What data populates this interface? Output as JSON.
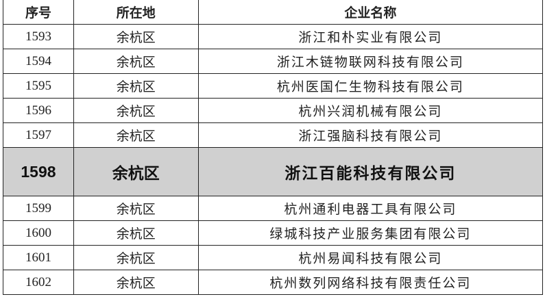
{
  "headers": [
    "序号",
    "所在地",
    "企业名称"
  ],
  "highlight_color": "#d0d0d0",
  "rows": [
    {
      "no": "1593",
      "location": "余杭区",
      "name": "浙江和朴实业有限公司"
    },
    {
      "no": "1594",
      "location": "余杭区",
      "name": "浙江木链物联网科技有限公司"
    },
    {
      "no": "1595",
      "location": "余杭区",
      "name": "杭州医国仁生物科技有限公司"
    },
    {
      "no": "1596",
      "location": "余杭区",
      "name": "杭州兴润机械有限公司"
    },
    {
      "no": "1597",
      "location": "余杭区",
      "name": "浙江强脑科技有限公司"
    },
    {
      "no": "1598",
      "location": "余杭区",
      "name": "浙江百能科技有限公司",
      "highlighted": true
    },
    {
      "no": "1599",
      "location": "余杭区",
      "name": "杭州通利电器工具有限公司"
    },
    {
      "no": "1600",
      "location": "余杭区",
      "name": "绿城科技产业服务集团有限公司"
    },
    {
      "no": "1601",
      "location": "余杭区",
      "name": "杭州易闻科技有限公司"
    },
    {
      "no": "1602",
      "location": "余杭区",
      "name": "杭州数列网络科技有限责任公司"
    }
  ]
}
